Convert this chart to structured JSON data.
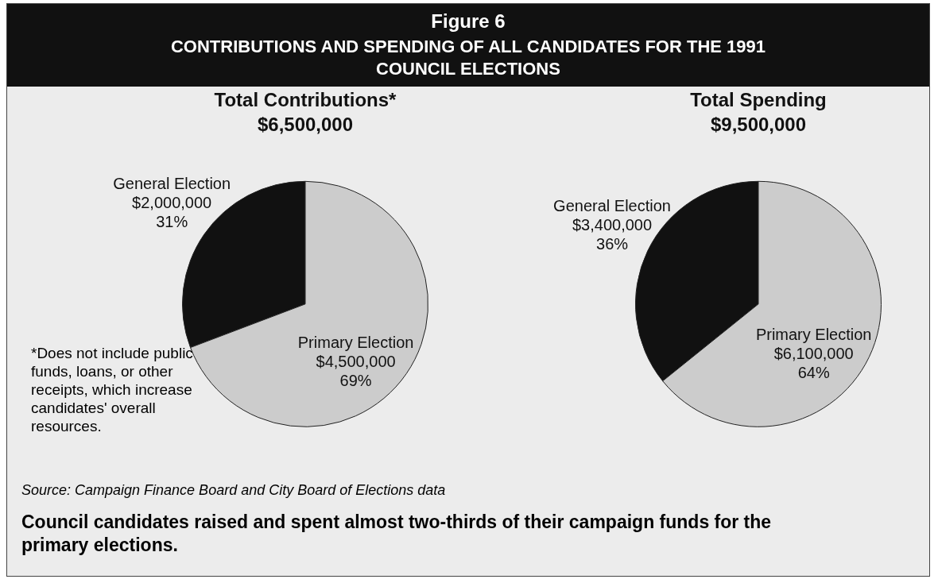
{
  "chart_data": [
    {
      "type": "other",
      "title": "Figure 6",
      "subtitle": "CONTRIBUTIONS AND SPENDING OF ALL CANDIDATES FOR THE 1991 COUNCIL ELECTIONS",
      "annotations": [
        "Source: Campaign Finance Board and City Board of Elections data",
        "Council candidates raised and spent almost two-thirds of their campaign funds for the primary elections."
      ]
    },
    {
      "type": "pie",
      "title": "Total Contributions*",
      "subtitle": "$6,500,000",
      "categories": [
        "General Election",
        "Primary Election"
      ],
      "values": [
        2000000,
        4500000
      ],
      "colors": [
        "#111111",
        "#cccccc"
      ],
      "value_labels": [
        "$2,000,000\n31%",
        "$4,500,000\n69%"
      ],
      "annotations": [
        "*Does not include public funds, loans, or other receipts, which increase candidates' overall resources."
      ]
    },
    {
      "type": "pie",
      "title": "Total Spending",
      "subtitle": "$9,500,000",
      "categories": [
        "General Election",
        "Primary Election"
      ],
      "values": [
        3400000,
        6100000
      ],
      "colors": [
        "#111111",
        "#cccccc"
      ],
      "value_labels": [
        "$3,400,000\n36%",
        "$6,100,000\n64%"
      ]
    }
  ]
}
